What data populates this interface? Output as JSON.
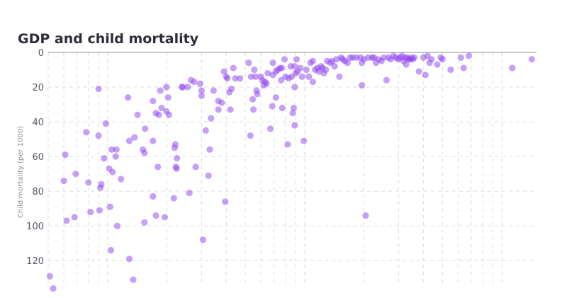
{
  "chart_data": {
    "type": "scatter",
    "title": "GDP and child mortality",
    "xlabel": "",
    "ylabel": "Child mortality (per 1000)",
    "xscale": "log",
    "xlim": [
      500,
      150000
    ],
    "ylim": [
      135,
      0
    ],
    "y_inverted": true,
    "yticks": [
      0,
      20,
      40,
      60,
      80,
      100,
      120
    ],
    "grid": true,
    "color": "#8e3ff0",
    "points": [
      {
        "x": 510,
        "y": 129
      },
      {
        "x": 530,
        "y": 136
      },
      {
        "x": 600,
        "y": 74
      },
      {
        "x": 610,
        "y": 59
      },
      {
        "x": 620,
        "y": 97
      },
      {
        "x": 680,
        "y": 95
      },
      {
        "x": 690,
        "y": 70
      },
      {
        "x": 780,
        "y": 46
      },
      {
        "x": 800,
        "y": 75
      },
      {
        "x": 820,
        "y": 92
      },
      {
        "x": 900,
        "y": 21
      },
      {
        "x": 900,
        "y": 48
      },
      {
        "x": 910,
        "y": 91
      },
      {
        "x": 920,
        "y": 78
      },
      {
        "x": 930,
        "y": 76
      },
      {
        "x": 960,
        "y": 61
      },
      {
        "x": 980,
        "y": 41
      },
      {
        "x": 1020,
        "y": 67
      },
      {
        "x": 1030,
        "y": 89
      },
      {
        "x": 1040,
        "y": 114
      },
      {
        "x": 1050,
        "y": 56
      },
      {
        "x": 1060,
        "y": 69
      },
      {
        "x": 1100,
        "y": 60
      },
      {
        "x": 1110,
        "y": 56
      },
      {
        "x": 1120,
        "y": 100
      },
      {
        "x": 1170,
        "y": 73
      },
      {
        "x": 1270,
        "y": 26
      },
      {
        "x": 1290,
        "y": 119
      },
      {
        "x": 1290,
        "y": 51
      },
      {
        "x": 1350,
        "y": 131
      },
      {
        "x": 1370,
        "y": 49
      },
      {
        "x": 1420,
        "y": 36
      },
      {
        "x": 1510,
        "y": 56
      },
      {
        "x": 1540,
        "y": 58
      },
      {
        "x": 1540,
        "y": 98
      },
      {
        "x": 1550,
        "y": 44
      },
      {
        "x": 1700,
        "y": 28
      },
      {
        "x": 1700,
        "y": 83
      },
      {
        "x": 1700,
        "y": 51
      },
      {
        "x": 1760,
        "y": 35
      },
      {
        "x": 1760,
        "y": 94
      },
      {
        "x": 1800,
        "y": 66
      },
      {
        "x": 1820,
        "y": 36
      },
      {
        "x": 1850,
        "y": 22
      },
      {
        "x": 1880,
        "y": 32
      },
      {
        "x": 1950,
        "y": 95
      },
      {
        "x": 1990,
        "y": 20
      },
      {
        "x": 1990,
        "y": 34
      },
      {
        "x": 2030,
        "y": 26
      },
      {
        "x": 2050,
        "y": 36
      },
      {
        "x": 2170,
        "y": 84
      },
      {
        "x": 2190,
        "y": 55
      },
      {
        "x": 2210,
        "y": 53
      },
      {
        "x": 2220,
        "y": 66
      },
      {
        "x": 2240,
        "y": 67
      },
      {
        "x": 2250,
        "y": 61
      },
      {
        "x": 2380,
        "y": 20
      },
      {
        "x": 2410,
        "y": 20
      },
      {
        "x": 2550,
        "y": 20
      },
      {
        "x": 2600,
        "y": 81
      },
      {
        "x": 2650,
        "y": 16
      },
      {
        "x": 2750,
        "y": 17
      },
      {
        "x": 2800,
        "y": 66
      },
      {
        "x": 2950,
        "y": 18
      },
      {
        "x": 3000,
        "y": 22
      },
      {
        "x": 3000,
        "y": 25
      },
      {
        "x": 3050,
        "y": 108
      },
      {
        "x": 3150,
        "y": 45
      },
      {
        "x": 3250,
        "y": 71
      },
      {
        "x": 3300,
        "y": 56
      },
      {
        "x": 3350,
        "y": 38
      },
      {
        "x": 3450,
        "y": 22
      },
      {
        "x": 3650,
        "y": 28
      },
      {
        "x": 3650,
        "y": 33
      },
      {
        "x": 3800,
        "y": 29
      },
      {
        "x": 3900,
        "y": 11
      },
      {
        "x": 3950,
        "y": 86
      },
      {
        "x": 4000,
        "y": 14
      },
      {
        "x": 4050,
        "y": 15
      },
      {
        "x": 4150,
        "y": 23
      },
      {
        "x": 4200,
        "y": 33
      },
      {
        "x": 4250,
        "y": 21
      },
      {
        "x": 4350,
        "y": 9
      },
      {
        "x": 4450,
        "y": 15
      },
      {
        "x": 4700,
        "y": 15
      },
      {
        "x": 5200,
        "y": 6
      },
      {
        "x": 5300,
        "y": 48
      },
      {
        "x": 5350,
        "y": 14
      },
      {
        "x": 5450,
        "y": 27
      },
      {
        "x": 5500,
        "y": 33
      },
      {
        "x": 5550,
        "y": 10
      },
      {
        "x": 5650,
        "y": 14
      },
      {
        "x": 5700,
        "y": 22
      },
      {
        "x": 5750,
        "y": 24
      },
      {
        "x": 6000,
        "y": 14
      },
      {
        "x": 6100,
        "y": 16
      },
      {
        "x": 6200,
        "y": 19
      },
      {
        "x": 6300,
        "y": 17
      },
      {
        "x": 6400,
        "y": 18
      },
      {
        "x": 6500,
        "y": 12
      },
      {
        "x": 6700,
        "y": 44
      },
      {
        "x": 6850,
        "y": 31
      },
      {
        "x": 6900,
        "y": 13
      },
      {
        "x": 6900,
        "y": 6
      },
      {
        "x": 7150,
        "y": 11
      },
      {
        "x": 7150,
        "y": 26
      },
      {
        "x": 7300,
        "y": 10
      },
      {
        "x": 7500,
        "y": 9
      },
      {
        "x": 7600,
        "y": 16
      },
      {
        "x": 7650,
        "y": 9
      },
      {
        "x": 7700,
        "y": 32
      },
      {
        "x": 7900,
        "y": 4
      },
      {
        "x": 8000,
        "y": 14
      },
      {
        "x": 8200,
        "y": 53
      },
      {
        "x": 8300,
        "y": 15
      },
      {
        "x": 8500,
        "y": 8
      },
      {
        "x": 8600,
        "y": 14
      },
      {
        "x": 8700,
        "y": 35
      },
      {
        "x": 8800,
        "y": 32
      },
      {
        "x": 8900,
        "y": 8
      },
      {
        "x": 8900,
        "y": 42
      },
      {
        "x": 8900,
        "y": 20
      },
      {
        "x": 9000,
        "y": 12
      },
      {
        "x": 9100,
        "y": 4
      },
      {
        "x": 9200,
        "y": 11
      },
      {
        "x": 9500,
        "y": 9
      },
      {
        "x": 9700,
        "y": 14
      },
      {
        "x": 9900,
        "y": 51
      },
      {
        "x": 10200,
        "y": 10
      },
      {
        "x": 10500,
        "y": 14
      },
      {
        "x": 10700,
        "y": 6
      },
      {
        "x": 11000,
        "y": 17
      },
      {
        "x": 11000,
        "y": 5
      },
      {
        "x": 11300,
        "y": 10
      },
      {
        "x": 11600,
        "y": 9
      },
      {
        "x": 11800,
        "y": 11
      },
      {
        "x": 12100,
        "y": 8
      },
      {
        "x": 12300,
        "y": 9
      },
      {
        "x": 12500,
        "y": 12
      },
      {
        "x": 12800,
        "y": 10
      },
      {
        "x": 13000,
        "y": 5
      },
      {
        "x": 13500,
        "y": 6
      },
      {
        "x": 13800,
        "y": 5
      },
      {
        "x": 14200,
        "y": 8
      },
      {
        "x": 14500,
        "y": 4
      },
      {
        "x": 15000,
        "y": 14
      },
      {
        "x": 15300,
        "y": 3
      },
      {
        "x": 15600,
        "y": 4
      },
      {
        "x": 16000,
        "y": 5
      },
      {
        "x": 16500,
        "y": 6
      },
      {
        "x": 17000,
        "y": 3
      },
      {
        "x": 17500,
        "y": 3
      },
      {
        "x": 18300,
        "y": 3
      },
      {
        "x": 19200,
        "y": 3
      },
      {
        "x": 19500,
        "y": 6
      },
      {
        "x": 19500,
        "y": 19
      },
      {
        "x": 20000,
        "y": 4
      },
      {
        "x": 20400,
        "y": 94
      },
      {
        "x": 21000,
        "y": 3
      },
      {
        "x": 22000,
        "y": 3
      },
      {
        "x": 22500,
        "y": 3
      },
      {
        "x": 23000,
        "y": 6
      },
      {
        "x": 23700,
        "y": 4
      },
      {
        "x": 24500,
        "y": 5
      },
      {
        "x": 25200,
        "y": 3
      },
      {
        "x": 26000,
        "y": 16
      },
      {
        "x": 26600,
        "y": 3
      },
      {
        "x": 27300,
        "y": 4
      },
      {
        "x": 28200,
        "y": 2
      },
      {
        "x": 29100,
        "y": 3
      },
      {
        "x": 29800,
        "y": 4
      },
      {
        "x": 30500,
        "y": 3
      },
      {
        "x": 31200,
        "y": 2
      },
      {
        "x": 31800,
        "y": 5
      },
      {
        "x": 32300,
        "y": 3
      },
      {
        "x": 32700,
        "y": 7
      },
      {
        "x": 33200,
        "y": 3
      },
      {
        "x": 33700,
        "y": 4
      },
      {
        "x": 34200,
        "y": 4
      },
      {
        "x": 34800,
        "y": 3
      },
      {
        "x": 35400,
        "y": 4
      },
      {
        "x": 36000,
        "y": 3
      },
      {
        "x": 38000,
        "y": 11
      },
      {
        "x": 40000,
        "y": 3
      },
      {
        "x": 41000,
        "y": 13
      },
      {
        "x": 42000,
        "y": 2
      },
      {
        "x": 43000,
        "y": 6
      },
      {
        "x": 44000,
        "y": 4
      },
      {
        "x": 47000,
        "y": 7
      },
      {
        "x": 49000,
        "y": 3
      },
      {
        "x": 50000,
        "y": 4
      },
      {
        "x": 55000,
        "y": 10
      },
      {
        "x": 62000,
        "y": 3
      },
      {
        "x": 64000,
        "y": 9
      },
      {
        "x": 68000,
        "y": 2
      },
      {
        "x": 113000,
        "y": 9
      },
      {
        "x": 142000,
        "y": 4
      }
    ]
  }
}
